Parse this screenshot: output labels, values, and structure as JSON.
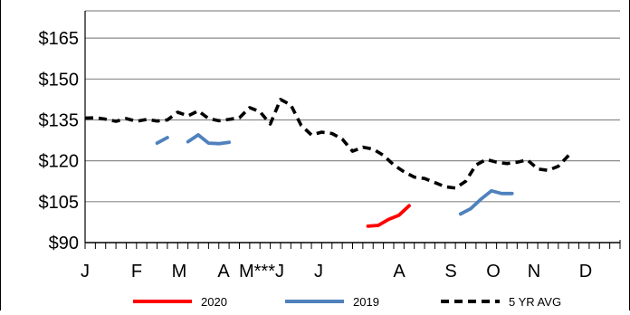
{
  "chart_data": {
    "type": "line",
    "title": "",
    "xlabel": "",
    "ylabel": "",
    "ylim": [
      90,
      175
    ],
    "yticks": [
      90,
      105,
      120,
      135,
      150,
      165
    ],
    "ytick_labels": [
      "$90",
      "$105",
      "$120",
      "$135",
      "$150",
      "$165"
    ],
    "x_range": [
      1,
      53
    ],
    "x_tick_labels": [
      "J",
      "F",
      "M",
      "A",
      "M***J",
      "J",
      "A",
      "S",
      "O",
      "N",
      "D"
    ],
    "grid": true,
    "legend_position": "bottom",
    "series": [
      {
        "name": "2020",
        "color": "#ff0000",
        "dash": "solid",
        "points": [
          [
            28.5,
            96
          ],
          [
            29.5,
            96.3
          ],
          [
            30.5,
            98.5
          ],
          [
            31.5,
            100
          ],
          [
            32.5,
            103.5
          ]
        ]
      },
      {
        "name": "2019",
        "color": "#4f81bd",
        "dash": "solid",
        "segments": [
          [
            [
              8,
              126.5
            ],
            [
              9,
              128.5
            ]
          ],
          [
            [
              11,
              127
            ],
            [
              12,
              129.5
            ],
            [
              13,
              126.5
            ],
            [
              14,
              126.3
            ],
            [
              15,
              126.8
            ]
          ],
          [
            [
              37.5,
              100.5
            ],
            [
              38.5,
              102.5
            ],
            [
              39.5,
              106
            ],
            [
              40.5,
              109
            ],
            [
              41.5,
              108
            ],
            [
              42.5,
              108
            ]
          ]
        ]
      },
      {
        "name": "5 YR AVG",
        "color": "#000000",
        "dash": "dashed",
        "points": [
          [
            1,
            135.7
          ],
          [
            2,
            135.8
          ],
          [
            3,
            135.3
          ],
          [
            4,
            134.5
          ],
          [
            5,
            135.5
          ],
          [
            6,
            134.5
          ],
          [
            7,
            135.2
          ],
          [
            8,
            134.6
          ],
          [
            9,
            135.0
          ],
          [
            10,
            137.8
          ],
          [
            11,
            136.5
          ],
          [
            12,
            138.3
          ],
          [
            13,
            135.5
          ],
          [
            14,
            134.7
          ],
          [
            15,
            135.2
          ],
          [
            16,
            135.8
          ],
          [
            17,
            139.5
          ],
          [
            18,
            138.0
          ],
          [
            19,
            133.5
          ],
          [
            20,
            142.5
          ],
          [
            21,
            140.5
          ],
          [
            22,
            133.0
          ],
          [
            23,
            129.5
          ],
          [
            24,
            130.5
          ],
          [
            25,
            130.0
          ],
          [
            26,
            128.0
          ],
          [
            27,
            123.5
          ],
          [
            28,
            125.0
          ],
          [
            29,
            124.3
          ],
          [
            30,
            122.0
          ],
          [
            31,
            118.5
          ],
          [
            32,
            116.0
          ],
          [
            33,
            114.0
          ],
          [
            34,
            113.5
          ],
          [
            35,
            112.0
          ],
          [
            36,
            110.5
          ],
          [
            37,
            110.0
          ],
          [
            38,
            112.5
          ],
          [
            39,
            118.5
          ],
          [
            40,
            120.5
          ],
          [
            41,
            119.5
          ],
          [
            42,
            119.0
          ],
          [
            43,
            119.5
          ],
          [
            44,
            120.3
          ],
          [
            45,
            117.0
          ],
          [
            46,
            116.5
          ],
          [
            47,
            118.0
          ],
          [
            48,
            122.0
          ]
        ]
      }
    ]
  }
}
